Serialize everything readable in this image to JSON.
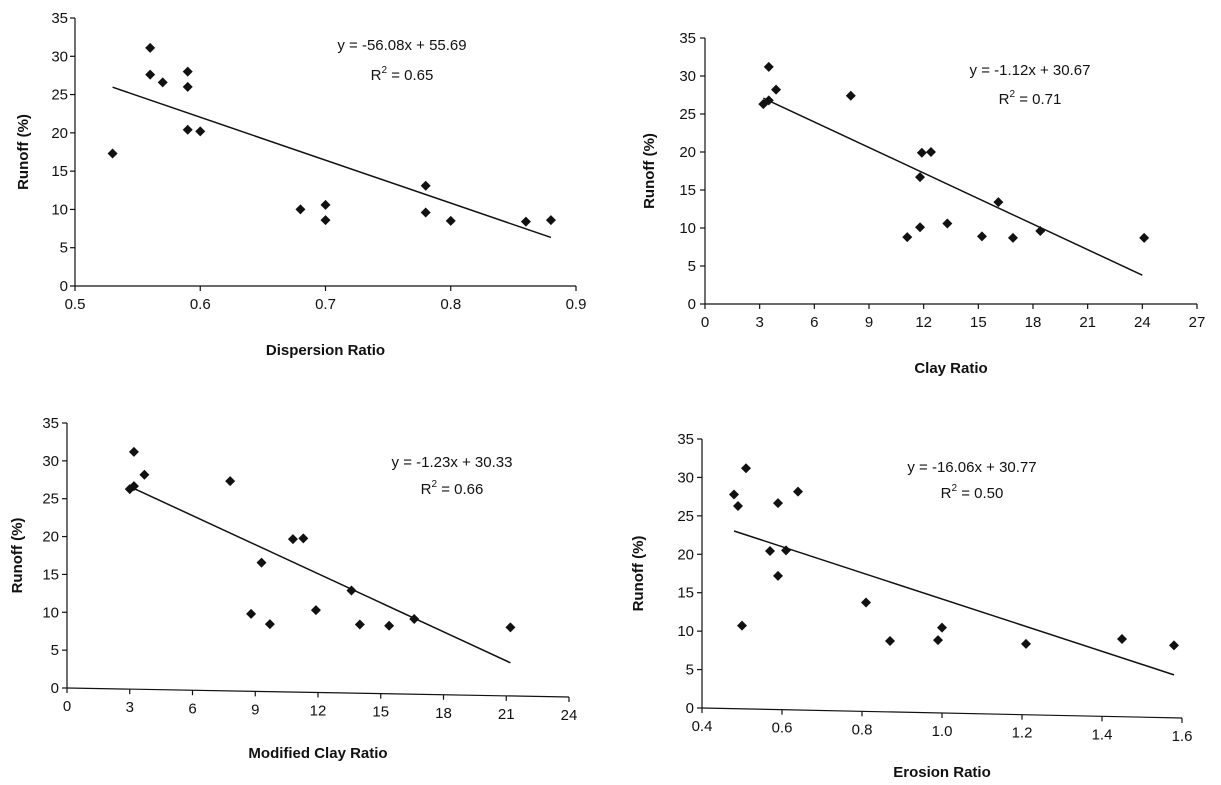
{
  "chart_data": [
    {
      "type": "scatter",
      "xlabel": "Dispersion Ratio",
      "ylabel": "Runoff (%)",
      "xlim": [
        0.5,
        0.9
      ],
      "ylim": [
        0,
        35
      ],
      "xticks": [
        "0.5",
        "0.6",
        "0.7",
        "0.8",
        "0.9"
      ],
      "yticks": [
        "0",
        "5",
        "10",
        "15",
        "20",
        "25",
        "30",
        "35"
      ],
      "points": [
        {
          "x": 0.53,
          "y": 17.3
        },
        {
          "x": 0.56,
          "y": 31.1
        },
        {
          "x": 0.56,
          "y": 27.6
        },
        {
          "x": 0.57,
          "y": 26.6
        },
        {
          "x": 0.59,
          "y": 28.0
        },
        {
          "x": 0.59,
          "y": 26.0
        },
        {
          "x": 0.59,
          "y": 20.4
        },
        {
          "x": 0.6,
          "y": 20.2
        },
        {
          "x": 0.68,
          "y": 10.0
        },
        {
          "x": 0.7,
          "y": 10.6
        },
        {
          "x": 0.7,
          "y": 8.6
        },
        {
          "x": 0.78,
          "y": 13.1
        },
        {
          "x": 0.78,
          "y": 9.6
        },
        {
          "x": 0.8,
          "y": 8.5
        },
        {
          "x": 0.86,
          "y": 8.4
        },
        {
          "x": 0.88,
          "y": 8.6
        }
      ],
      "trendline": {
        "x": [
          0.53,
          0.88
        ],
        "slope": -56.08,
        "intercept": 55.69
      },
      "equation": "y = -56.08x + 55.69",
      "r2_prefix": "R",
      "r2_exp": "2",
      "r2_value": " = 0.65"
    },
    {
      "type": "scatter",
      "xlabel": "Clay Ratio",
      "ylabel": "Runoff (%)",
      "xlim": [
        0,
        27
      ],
      "ylim": [
        0,
        35
      ],
      "xticks": [
        "0",
        "3",
        "6",
        "9",
        "12",
        "15",
        "18",
        "21",
        "24",
        "27"
      ],
      "yticks": [
        "0",
        "5",
        "10",
        "15",
        "20",
        "25",
        "30",
        "35"
      ],
      "points": [
        {
          "x": 3.2,
          "y": 26.3
        },
        {
          "x": 3.5,
          "y": 26.8
        },
        {
          "x": 3.5,
          "y": 31.2
        },
        {
          "x": 3.9,
          "y": 28.2
        },
        {
          "x": 8.0,
          "y": 27.4
        },
        {
          "x": 11.1,
          "y": 8.8
        },
        {
          "x": 11.8,
          "y": 10.1
        },
        {
          "x": 11.8,
          "y": 16.7
        },
        {
          "x": 11.9,
          "y": 19.9
        },
        {
          "x": 12.4,
          "y": 20.0
        },
        {
          "x": 13.3,
          "y": 10.6
        },
        {
          "x": 15.2,
          "y": 8.9
        },
        {
          "x": 16.1,
          "y": 13.4
        },
        {
          "x": 16.9,
          "y": 8.7
        },
        {
          "x": 18.4,
          "y": 9.6
        },
        {
          "x": 24.1,
          "y": 8.7
        }
      ],
      "trendline": {
        "x": [
          3.2,
          24.0
        ],
        "slope": -1.12,
        "intercept": 30.67
      },
      "equation": "y = -1.12x + 30.67",
      "r2_prefix": "R",
      "r2_exp": "2",
      "r2_value": " = 0.71"
    },
    {
      "type": "scatter",
      "xlabel": "Modified Clay Ratio",
      "ylabel": "Runoff (%)",
      "xlim": [
        0,
        24
      ],
      "ylim": [
        0,
        35
      ],
      "xticks": [
        "0",
        "3",
        "6",
        "9",
        "12",
        "15",
        "18",
        "21",
        "24"
      ],
      "yticks": [
        "0",
        "5",
        "10",
        "15",
        "20",
        "25",
        "30",
        "35"
      ],
      "points": [
        {
          "x": 3.0,
          "y": 26.3
        },
        {
          "x": 3.2,
          "y": 26.7
        },
        {
          "x": 3.2,
          "y": 31.2
        },
        {
          "x": 3.7,
          "y": 28.2
        },
        {
          "x": 7.8,
          "y": 27.4
        },
        {
          "x": 8.8,
          "y": 10.1
        },
        {
          "x": 9.3,
          "y": 16.8
        },
        {
          "x": 9.7,
          "y": 8.8
        },
        {
          "x": 10.8,
          "y": 19.9
        },
        {
          "x": 11.3,
          "y": 20.0
        },
        {
          "x": 11.9,
          "y": 10.7
        },
        {
          "x": 13.6,
          "y": 13.3
        },
        {
          "x": 14.0,
          "y": 8.9
        },
        {
          "x": 15.4,
          "y": 8.8
        },
        {
          "x": 16.6,
          "y": 9.7
        },
        {
          "x": 21.2,
          "y": 8.8
        }
      ],
      "trendline": {
        "x": [
          3.0,
          21.2
        ],
        "slope": -1.23,
        "intercept": 30.33
      },
      "equation": "y = -1.23x + 30.33",
      "r2_prefix": "R",
      "r2_exp": "2",
      "r2_value": " = 0.66"
    },
    {
      "type": "scatter",
      "xlabel": "Erosion Ratio",
      "ylabel": "Runoff (%)",
      "xlim": [
        0.4,
        1.6
      ],
      "ylim": [
        0,
        35
      ],
      "xticks": [
        "0.4",
        "0.6",
        "0.8",
        "1.0",
        "1.2",
        "1.4",
        "1.6"
      ],
      "yticks": [
        "0",
        "5",
        "10",
        "15",
        "20",
        "25",
        "30",
        "35"
      ],
      "points": [
        {
          "x": 0.48,
          "y": 27.8
        },
        {
          "x": 0.49,
          "y": 26.3
        },
        {
          "x": 0.5,
          "y": 10.8
        },
        {
          "x": 0.51,
          "y": 31.2
        },
        {
          "x": 0.57,
          "y": 20.5
        },
        {
          "x": 0.59,
          "y": 17.3
        },
        {
          "x": 0.59,
          "y": 26.7
        },
        {
          "x": 0.61,
          "y": 20.6
        },
        {
          "x": 0.64,
          "y": 28.2
        },
        {
          "x": 0.81,
          "y": 14.0
        },
        {
          "x": 0.87,
          "y": 9.1
        },
        {
          "x": 0.99,
          "y": 9.3
        },
        {
          "x": 1.0,
          "y": 10.9
        },
        {
          "x": 1.21,
          "y": 9.0
        },
        {
          "x": 1.45,
          "y": 9.8
        },
        {
          "x": 1.58,
          "y": 9.1
        }
      ],
      "trendline": {
        "x": [
          0.48,
          1.58
        ],
        "slope": -16.06,
        "intercept": 30.77
      },
      "equation": "y = -16.06x + 30.77",
      "r2_prefix": "R",
      "r2_exp": "2",
      "r2_value": " = 0.50"
    }
  ]
}
